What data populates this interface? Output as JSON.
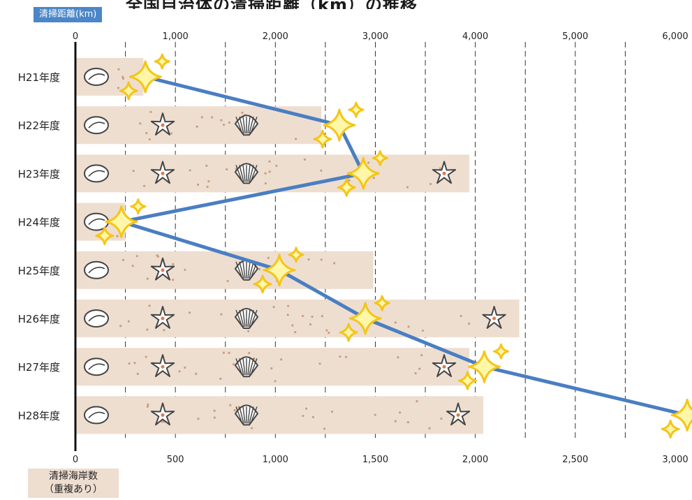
{
  "chart_data": {
    "type": "bar+line",
    "title": "全国自治体の清掃距離（km）の推移",
    "categories": [
      "H21年度",
      "H22年度",
      "H23年度",
      "H24年度",
      "H25年度",
      "H26年度",
      "H27年度",
      "H28年度"
    ],
    "bar_series": {
      "name": "清掃海岸数（重複あり）",
      "values": [
        340,
        1230,
        1970,
        250,
        1490,
        2220,
        1970,
        2040
      ],
      "axis": "bottom",
      "xlim": [
        0,
        3000
      ],
      "ticks": [
        "0",
        "500",
        "1,000",
        "1,500",
        "2,000",
        "2,500",
        "3,000"
      ]
    },
    "line_series": {
      "name": "清掃距離（km）",
      "values": [
        700,
        2640,
        2880,
        460,
        2040,
        2900,
        4090,
        6120
      ],
      "axis": "top",
      "xlim": [
        0,
        6000
      ],
      "ticks": [
        "0",
        "1,000",
        "2,000",
        "3,000",
        "4,000",
        "5,000",
        "6,000"
      ]
    },
    "top_axis_label": "清掃距離(km)",
    "bottom_axis_label": [
      "清掃海岸数",
      "（重複あり）"
    ],
    "grid": "vertical dashed",
    "colors": {
      "bar": "#eeded0",
      "line": "#4a7ec2",
      "sparkle": "#f5c518",
      "sparkle_fill": "#fff6a8",
      "label_bg": "#4a86c8"
    }
  }
}
